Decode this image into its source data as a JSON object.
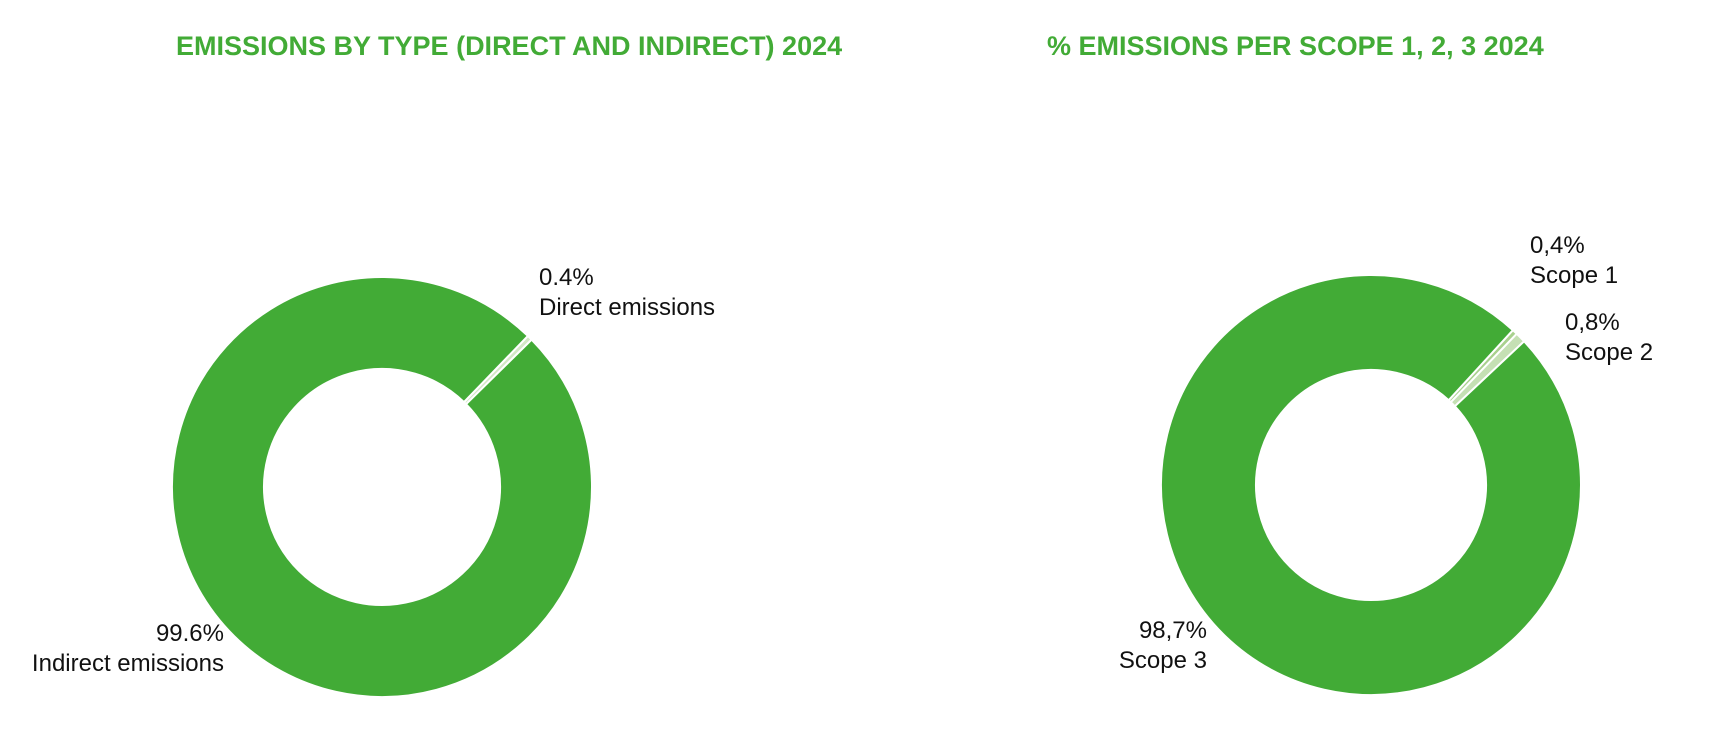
{
  "chart_data": [
    {
      "type": "donut",
      "title": "EMISSIONS BY TYPE (DIRECT AND INDIRECT) 2024",
      "categories": [
        "Direct emissions",
        "Indirect emissions"
      ],
      "values": [
        0.4,
        99.6
      ],
      "value_labels": [
        "0.4%",
        "99.6%"
      ],
      "colors": [
        "#d3e8c6",
        "#42ab36"
      ]
    },
    {
      "type": "donut",
      "title": "% EMISSIONS PER SCOPE 1, 2, 3 2024",
      "categories": [
        "Scope 1",
        "Scope 2",
        "Scope 3"
      ],
      "values": [
        0.4,
        0.8,
        98.7
      ],
      "value_labels": [
        "0,4%",
        "0,8%",
        "98,7%"
      ],
      "colors": [
        "#a9d18e",
        "#c5e0b4",
        "#42ab36"
      ]
    }
  ]
}
